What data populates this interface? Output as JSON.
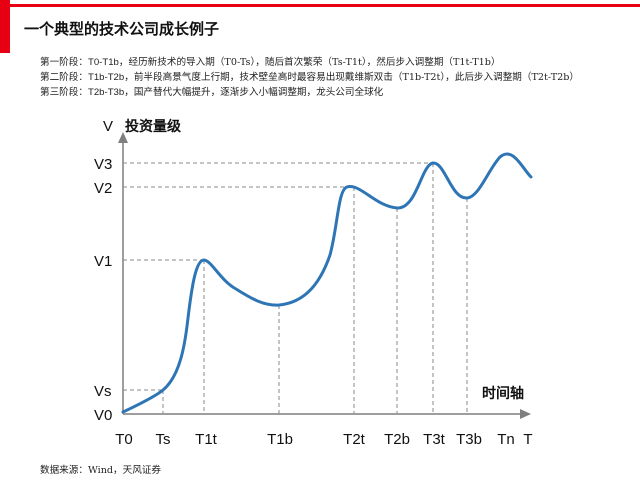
{
  "title": "一个典型的技术公司成长例子",
  "stages": [
    {
      "prefix": "第一阶段：",
      "code": "T0-T1b",
      "text": "，经历新技术的导入期（T0-Ts），随后首次繁荣（Ts-T1t），然后步入调整期（T1t-T1b）"
    },
    {
      "prefix": "第二阶段：",
      "code": "T1b-T2b",
      "text": "，前半段高景气度上行期，技术壁垒高时最容易出现戴维斯双击（T1b-T2t），此后步入调整期（T2t-T2b）"
    },
    {
      "prefix": "第三阶段：",
      "code": "T2b-T3b",
      "text": "，国产替代大幅提升，逐渐步入小幅调整期，龙头公司全球化"
    }
  ],
  "source": "数据来源：Wind，天风证券",
  "diagram": {
    "y_axis_symbol": "V",
    "y_axis_title": "投资量级",
    "x_axis_title": "时间轴",
    "y_levels": [
      "V3",
      "V2",
      "V1",
      "Vs",
      "V0"
    ],
    "x_ticks": [
      "T0",
      "Ts",
      "T1t",
      "T1b",
      "T2t",
      "T2b",
      "T3t",
      "T3b",
      "Tn",
      "T"
    ],
    "curve_color": "#2e75b6",
    "axis_color": "#7f7f7f"
  }
}
